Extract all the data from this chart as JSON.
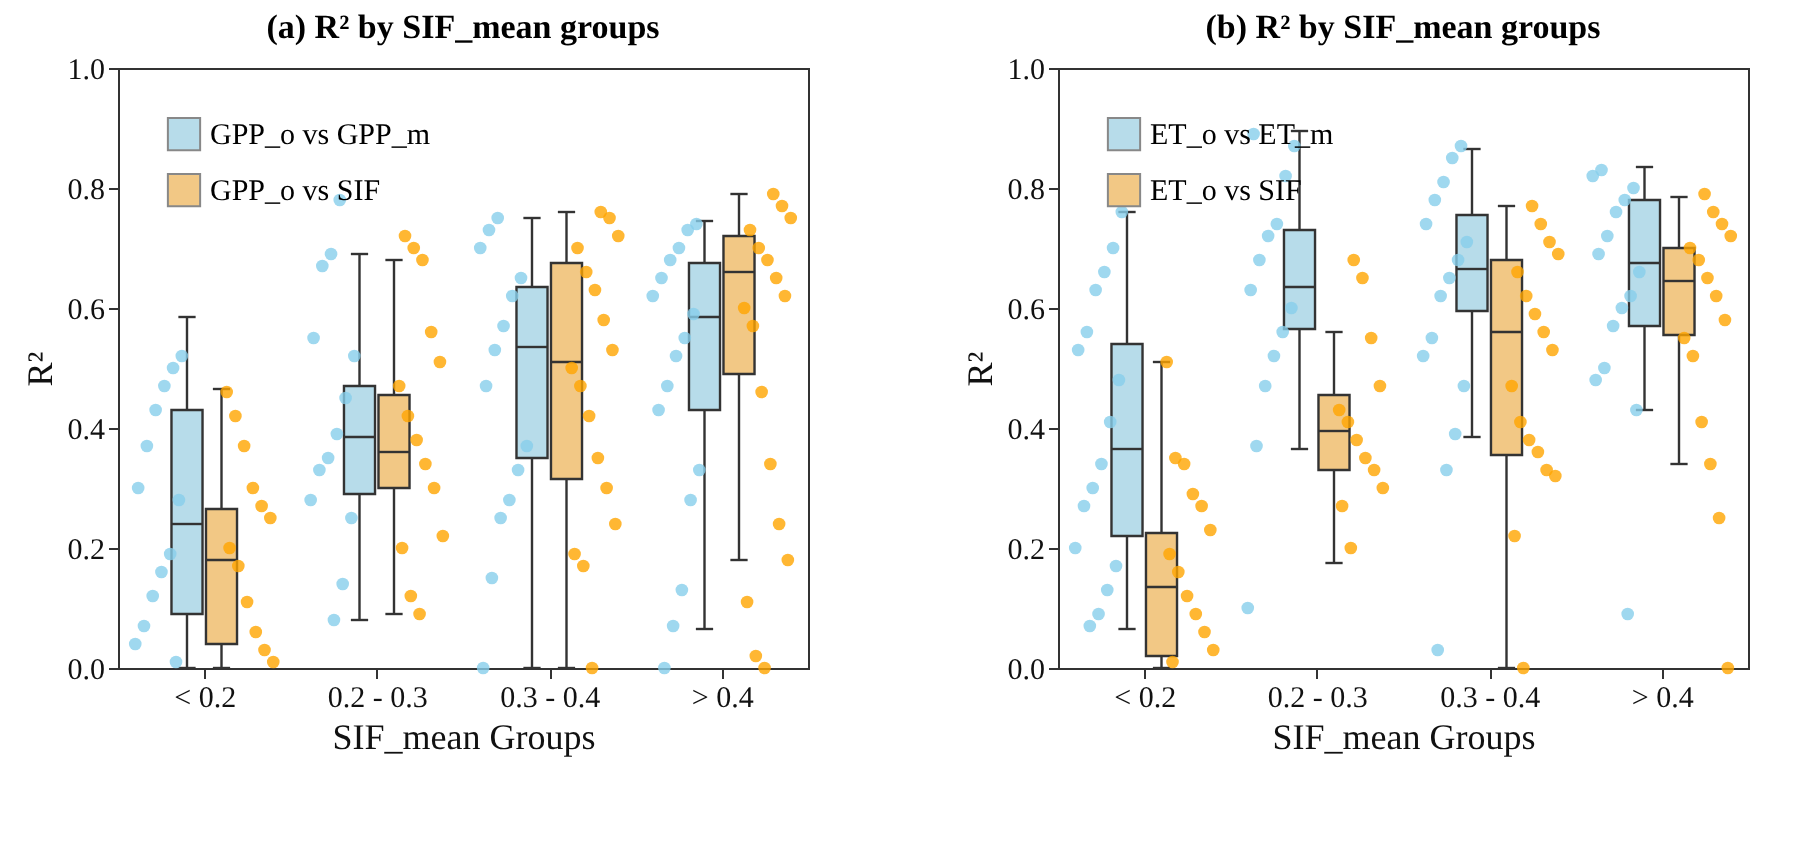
{
  "chart_data": [
    {
      "type": "box",
      "title": "(a) R² by SIF_mean groups",
      "xlabel": "SIF_mean Groups",
      "ylabel": "R²",
      "legend": "top left",
      "categories": [
        "< 0.2",
        "0.2 - 0.3",
        "0.3 - 0.4",
        "> 0.4"
      ],
      "ylim": [
        0,
        1
      ],
      "yticks": [
        {
          "value": 0,
          "label": "0.0"
        },
        {
          "value": 0.2,
          "label": "0.2"
        },
        {
          "value": 0.4,
          "label": "0.4"
        },
        {
          "value": 0.6,
          "label": "0.6"
        },
        {
          "value": 0.8,
          "label": "0.8"
        },
        {
          "value": 1,
          "label": "1.0"
        }
      ],
      "series": [
        {
          "name": "GPP_o vs GPP_m",
          "color": "#b7dcea",
          "boxes": [
            {
              "low": 0,
              "q1": 0.09,
              "median": 0.24,
              "q3": 0.43,
              "high": 0.585
            },
            {
              "low": 0.08,
              "q1": 0.29,
              "median": 0.385,
              "q3": 0.47,
              "high": 0.69
            },
            {
              "low": 0,
              "q1": 0.35,
              "median": 0.535,
              "q3": 0.635,
              "high": 0.75
            },
            {
              "low": 0.065,
              "q1": 0.43,
              "median": 0.585,
              "q3": 0.675,
              "high": 0.745
            }
          ]
        },
        {
          "name": "GPP_o vs SIF",
          "color": "#f2c885",
          "boxes": [
            {
              "low": 0,
              "q1": 0.04,
              "median": 0.18,
              "q3": 0.265,
              "high": 0.465
            },
            {
              "low": 0.09,
              "q1": 0.3,
              "median": 0.36,
              "q3": 0.455,
              "high": 0.68
            },
            {
              "low": 0,
              "q1": 0.315,
              "median": 0.51,
              "q3": 0.675,
              "high": 0.76
            },
            {
              "low": 0.18,
              "q1": 0.49,
              "median": 0.66,
              "q3": 0.72,
              "high": 0.79
            }
          ]
        },
        {
          "type": "scatter",
          "color": "#87ceeb",
          "x": [
            "< 0.2",
            "< 0.2",
            "< 0.2",
            "< 0.2",
            "< 0.2",
            "< 0.2",
            "< 0.2",
            "< 0.2",
            "< 0.2",
            "< 0.2",
            "< 0.2",
            "< 0.2",
            "< 0.2",
            "0.2 - 0.3",
            "0.2 - 0.3",
            "0.2 - 0.3",
            "0.2 - 0.3",
            "0.2 - 0.3",
            "0.2 - 0.3",
            "0.2 - 0.3",
            "0.2 - 0.3",
            "0.2 - 0.3",
            "0.2 - 0.3",
            "0.2 - 0.3",
            "0.2 - 0.3",
            "0.2 - 0.3",
            "0.3 - 0.4",
            "0.3 - 0.4",
            "0.3 - 0.4",
            "0.3 - 0.4",
            "0.3 - 0.4",
            "0.3 - 0.4",
            "0.3 - 0.4",
            "0.3 - 0.4",
            "0.3 - 0.4",
            "0.3 - 0.4",
            "0.3 - 0.4",
            "0.3 - 0.4",
            "0.3 - 0.4",
            "0.3 - 0.4",
            "> 0.4",
            "> 0.4",
            "> 0.4",
            "> 0.4",
            "> 0.4",
            "> 0.4",
            "> 0.4",
            "> 0.4",
            "> 0.4",
            "> 0.4",
            "> 0.4",
            "> 0.4",
            "> 0.4",
            "> 0.4",
            "> 0.4",
            "> 0.4"
          ],
          "values": [
            0.52,
            0.5,
            0.47,
            0.43,
            0.37,
            0.3,
            0.28,
            0.19,
            0.16,
            0.12,
            0.07,
            0.04,
            0.01,
            0.78,
            0.69,
            0.67,
            0.55,
            0.52,
            0.45,
            0.39,
            0.35,
            0.33,
            0.28,
            0.25,
            0.14,
            0.08,
            0.75,
            0.73,
            0.7,
            0.65,
            0.62,
            0.57,
            0.53,
            0.47,
            0.37,
            0.33,
            0.28,
            0.25,
            0.15,
            0,
            0.74,
            0.73,
            0.7,
            0.68,
            0.65,
            0.62,
            0.59,
            0.55,
            0.52,
            0.47,
            0.43,
            0.33,
            0.28,
            0.13,
            0.07,
            0
          ]
        },
        {
          "type": "scatter",
          "color": "#ffa500",
          "x": [
            "< 0.2",
            "< 0.2",
            "< 0.2",
            "< 0.2",
            "< 0.2",
            "< 0.2",
            "< 0.2",
            "< 0.2",
            "< 0.2",
            "< 0.2",
            "< 0.2",
            "< 0.2",
            "0.2 - 0.3",
            "0.2 - 0.3",
            "0.2 - 0.3",
            "0.2 - 0.3",
            "0.2 - 0.3",
            "0.2 - 0.3",
            "0.2 - 0.3",
            "0.2 - 0.3",
            "0.2 - 0.3",
            "0.2 - 0.3",
            "0.2 - 0.3",
            "0.2 - 0.3",
            "0.2 - 0.3",
            "0.2 - 0.3",
            "0.3 - 0.4",
            "0.3 - 0.4",
            "0.3 - 0.4",
            "0.3 - 0.4",
            "0.3 - 0.4",
            "0.3 - 0.4",
            "0.3 - 0.4",
            "0.3 - 0.4",
            "0.3 - 0.4",
            "0.3 - 0.4",
            "0.3 - 0.4",
            "0.3 - 0.4",
            "0.3 - 0.4",
            "0.3 - 0.4",
            "0.3 - 0.4",
            "0.3 - 0.4",
            "0.3 - 0.4",
            "> 0.4",
            "> 0.4",
            "> 0.4",
            "> 0.4",
            "> 0.4",
            "> 0.4",
            "> 0.4",
            "> 0.4",
            "> 0.4",
            "> 0.4",
            "> 0.4",
            "> 0.4",
            "> 0.4",
            "> 0.4",
            "> 0.4",
            "> 0.4",
            "> 0.4"
          ],
          "values": [
            0.46,
            0.42,
            0.37,
            0.3,
            0.27,
            0.25,
            0.2,
            0.17,
            0.11,
            0.06,
            0.03,
            0.01,
            0.72,
            0.7,
            0.68,
            0.56,
            0.51,
            0.47,
            0.42,
            0.38,
            0.34,
            0.3,
            0.22,
            0.2,
            0.12,
            0.09,
            0.76,
            0.75,
            0.72,
            0.7,
            0.66,
            0.63,
            0.58,
            0.53,
            0.5,
            0.47,
            0.42,
            0.35,
            0.3,
            0.24,
            0.19,
            0.17,
            0,
            0.79,
            0.77,
            0.75,
            0.73,
            0.7,
            0.68,
            0.65,
            0.62,
            0.6,
            0.57,
            0.46,
            0.34,
            0.24,
            0.18,
            0.11,
            0.02,
            0
          ]
        }
      ]
    },
    {
      "type": "box",
      "title": "(b) R² by SIF_mean groups",
      "xlabel": "SIF_mean Groups",
      "ylabel": "R²",
      "legend": "top left",
      "categories": [
        "< 0.2",
        "0.2 - 0.3",
        "0.3 - 0.4",
        "> 0.4"
      ],
      "ylim": [
        0,
        1
      ],
      "yticks": [
        {
          "value": 0,
          "label": "0.0"
        },
        {
          "value": 0.2,
          "label": "0.2"
        },
        {
          "value": 0.4,
          "label": "0.4"
        },
        {
          "value": 0.6,
          "label": "0.6"
        },
        {
          "value": 0.8,
          "label": "0.8"
        },
        {
          "value": 1,
          "label": "1.0"
        }
      ],
      "series": [
        {
          "name": "ET_o vs ET_m",
          "color": "#b7dcea",
          "boxes": [
            {
              "low": 0.065,
              "q1": 0.22,
              "median": 0.365,
              "q3": 0.54,
              "high": 0.76
            },
            {
              "low": 0.365,
              "q1": 0.565,
              "median": 0.635,
              "q3": 0.73,
              "high": 0.895
            },
            {
              "low": 0.385,
              "q1": 0.595,
              "median": 0.665,
              "q3": 0.755,
              "high": 0.865
            },
            {
              "low": 0.43,
              "q1": 0.57,
              "median": 0.675,
              "q3": 0.78,
              "high": 0.835
            }
          ]
        },
        {
          "name": "ET_o vs SIF",
          "color": "#f2c885",
          "boxes": [
            {
              "low": 0,
              "q1": 0.02,
              "median": 0.135,
              "q3": 0.225,
              "high": 0.51
            },
            {
              "low": 0.175,
              "q1": 0.33,
              "median": 0.395,
              "q3": 0.455,
              "high": 0.56
            },
            {
              "low": 0,
              "q1": 0.355,
              "median": 0.56,
              "q3": 0.68,
              "high": 0.77
            },
            {
              "low": 0.34,
              "q1": 0.555,
              "median": 0.645,
              "q3": 0.7,
              "high": 0.785
            }
          ]
        },
        {
          "type": "scatter",
          "color": "#87ceeb",
          "x": [
            "< 0.2",
            "< 0.2",
            "< 0.2",
            "< 0.2",
            "< 0.2",
            "< 0.2",
            "< 0.2",
            "< 0.2",
            "< 0.2",
            "< 0.2",
            "< 0.2",
            "< 0.2",
            "< 0.2",
            "< 0.2",
            "< 0.2",
            "< 0.2",
            "0.2 - 0.3",
            "0.2 - 0.3",
            "0.2 - 0.3",
            "0.2 - 0.3",
            "0.2 - 0.3",
            "0.2 - 0.3",
            "0.2 - 0.3",
            "0.2 - 0.3",
            "0.2 - 0.3",
            "0.2 - 0.3",
            "0.2 - 0.3",
            "0.2 - 0.3",
            "0.2 - 0.3",
            "0.3 - 0.4",
            "0.3 - 0.4",
            "0.3 - 0.4",
            "0.3 - 0.4",
            "0.3 - 0.4",
            "0.3 - 0.4",
            "0.3 - 0.4",
            "0.3 - 0.4",
            "0.3 - 0.4",
            "0.3 - 0.4",
            "0.3 - 0.4",
            "0.3 - 0.4",
            "0.3 - 0.4",
            "0.3 - 0.4",
            "0.3 - 0.4",
            "> 0.4",
            "> 0.4",
            "> 0.4",
            "> 0.4",
            "> 0.4",
            "> 0.4",
            "> 0.4",
            "> 0.4",
            "> 0.4",
            "> 0.4",
            "> 0.4",
            "> 0.4",
            "> 0.4",
            "> 0.4",
            "> 0.4"
          ],
          "values": [
            0.76,
            0.7,
            0.66,
            0.63,
            0.56,
            0.53,
            0.48,
            0.41,
            0.34,
            0.3,
            0.27,
            0.2,
            0.17,
            0.13,
            0.09,
            0.07,
            0.89,
            0.87,
            0.82,
            0.74,
            0.72,
            0.68,
            0.63,
            0.6,
            0.56,
            0.52,
            0.47,
            0.37,
            0.1,
            0.87,
            0.85,
            0.81,
            0.78,
            0.74,
            0.71,
            0.68,
            0.65,
            0.62,
            0.55,
            0.52,
            0.47,
            0.39,
            0.33,
            0.03,
            0.83,
            0.82,
            0.8,
            0.78,
            0.76,
            0.72,
            0.69,
            0.66,
            0.62,
            0.6,
            0.57,
            0.5,
            0.48,
            0.43,
            0.09
          ]
        },
        {
          "type": "scatter",
          "color": "#ffa500",
          "x": [
            "< 0.2",
            "< 0.2",
            "< 0.2",
            "< 0.2",
            "< 0.2",
            "< 0.2",
            "< 0.2",
            "< 0.2",
            "< 0.2",
            "< 0.2",
            "< 0.2",
            "< 0.2",
            "< 0.2",
            "0.2 - 0.3",
            "0.2 - 0.3",
            "0.2 - 0.3",
            "0.2 - 0.3",
            "0.2 - 0.3",
            "0.2 - 0.3",
            "0.2 - 0.3",
            "0.2 - 0.3",
            "0.2 - 0.3",
            "0.2 - 0.3",
            "0.2 - 0.3",
            "0.2 - 0.3",
            "0.3 - 0.4",
            "0.3 - 0.4",
            "0.3 - 0.4",
            "0.3 - 0.4",
            "0.3 - 0.4",
            "0.3 - 0.4",
            "0.3 - 0.4",
            "0.3 - 0.4",
            "0.3 - 0.4",
            "0.3 - 0.4",
            "0.3 - 0.4",
            "0.3 - 0.4",
            "0.3 - 0.4",
            "0.3 - 0.4",
            "0.3 - 0.4",
            "0.3 - 0.4",
            "0.3 - 0.4",
            "> 0.4",
            "> 0.4",
            "> 0.4",
            "> 0.4",
            "> 0.4",
            "> 0.4",
            "> 0.4",
            "> 0.4",
            "> 0.4",
            "> 0.4",
            "> 0.4",
            "> 0.4",
            "> 0.4",
            "> 0.4",
            "> 0.4"
          ],
          "values": [
            0.51,
            0.35,
            0.34,
            0.29,
            0.27,
            0.23,
            0.19,
            0.16,
            0.12,
            0.09,
            0.06,
            0.03,
            0.01,
            0.68,
            0.65,
            0.55,
            0.47,
            0.43,
            0.41,
            0.38,
            0.35,
            0.33,
            0.3,
            0.27,
            0.2,
            0.77,
            0.74,
            0.71,
            0.69,
            0.66,
            0.62,
            0.59,
            0.56,
            0.53,
            0.47,
            0.41,
            0.38,
            0.36,
            0.33,
            0.32,
            0.22,
            0,
            0.79,
            0.76,
            0.74,
            0.72,
            0.7,
            0.68,
            0.65,
            0.62,
            0.58,
            0.55,
            0.52,
            0.41,
            0.34,
            0.25,
            0
          ]
        }
      ]
    }
  ]
}
